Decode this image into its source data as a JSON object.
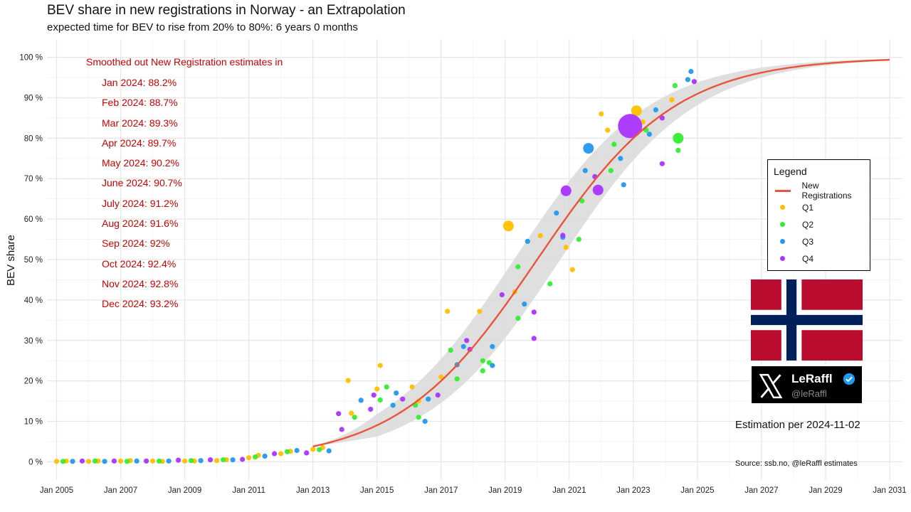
{
  "chart_data": {
    "type": "scatter",
    "title": "BEV share in new registrations in Norway - an Extrapolation",
    "subtitle": "expected time for BEV to rise from 20% to 80%: 6 years 0 months",
    "ylabel": "BEV share",
    "xlabel": "",
    "xlim": [
      2004.7,
      2031.4
    ],
    "ylim": [
      -4.5,
      104.5
    ],
    "x_ticks": [
      2005,
      2007,
      2009,
      2011,
      2013,
      2015,
      2017,
      2019,
      2021,
      2023,
      2025,
      2027,
      2029,
      2031
    ],
    "x_tick_labels": [
      "Jan 2005",
      "Jan 2007",
      "Jan 2009",
      "Jan 2011",
      "Jan 2013",
      "Jan 2015",
      "Jan 2017",
      "Jan 2019",
      "Jan 2021",
      "Jan 2023",
      "Jan 2025",
      "Jan 2027",
      "Jan 2029",
      "Jan 2031"
    ],
    "y_ticks": [
      0,
      10,
      20,
      30,
      40,
      50,
      60,
      70,
      80,
      90,
      100
    ],
    "y_tick_labels": [
      "0 %",
      "10 %",
      "20 %",
      "30 %",
      "40 %",
      "50 %",
      "60 %",
      "70 %",
      "80 %",
      "90 %",
      "100 %"
    ],
    "grid": true,
    "logistic_fit": {
      "midpoint": 2020.0,
      "k": 0.4621,
      "band_width_pct": 8.5,
      "x_start": 2013.0,
      "x_end": 2031.0
    },
    "series": [
      {
        "name": "New Registrations",
        "type": "line",
        "color": "#e8553a"
      },
      {
        "name": "Q1",
        "color": "#ffbf00",
        "points": [
          [
            2005.0,
            0.1
          ],
          [
            2005.3,
            0.2
          ],
          [
            2006.0,
            0.1
          ],
          [
            2006.3,
            0.2
          ],
          [
            2007.0,
            0.2
          ],
          [
            2007.3,
            0.3
          ],
          [
            2008.0,
            0.2
          ],
          [
            2008.3,
            0.1
          ],
          [
            2009.0,
            0.2
          ],
          [
            2009.3,
            0.2
          ],
          [
            2010.0,
            0.3
          ],
          [
            2010.3,
            0.5
          ],
          [
            2011.0,
            1.0
          ],
          [
            2011.3,
            1.6
          ],
          [
            2012.0,
            2.0
          ],
          [
            2012.3,
            2.6
          ],
          [
            2013.0,
            3.1
          ],
          [
            2013.3,
            3.5
          ],
          [
            2014.1,
            20.1
          ],
          [
            2014.2,
            12.0
          ],
          [
            2015.0,
            18.0
          ],
          [
            2015.1,
            23.8
          ],
          [
            2016.1,
            18.5
          ],
          [
            2016.3,
            15.0
          ],
          [
            2017.0,
            21.0
          ],
          [
            2017.2,
            37.2
          ],
          [
            2018.2,
            37.2
          ],
          [
            2019.1,
            58.3
          ],
          [
            2019.3,
            42.0
          ],
          [
            2020.1,
            55.9
          ],
          [
            2020.9,
            53.0
          ],
          [
            2021.1,
            47.5
          ],
          [
            2022.0,
            86.0
          ],
          [
            2022.2,
            82.0
          ],
          [
            2023.1,
            86.8
          ],
          [
            2023.3,
            84.0
          ],
          [
            2024.2,
            89.5
          ]
        ]
      },
      {
        "name": "Q2",
        "color": "#33ee33",
        "points": [
          [
            2005.2,
            0.1
          ],
          [
            2006.2,
            0.2
          ],
          [
            2007.2,
            0.1
          ],
          [
            2008.2,
            0.2
          ],
          [
            2009.2,
            0.3
          ],
          [
            2010.2,
            0.5
          ],
          [
            2011.2,
            1.2
          ],
          [
            2012.2,
            2.5
          ],
          [
            2013.2,
            3.0
          ],
          [
            2014.3,
            11.0
          ],
          [
            2015.1,
            15.3
          ],
          [
            2015.3,
            18.5
          ],
          [
            2016.2,
            14.0
          ],
          [
            2016.3,
            11.0
          ],
          [
            2017.3,
            27.6
          ],
          [
            2017.5,
            20.5
          ],
          [
            2018.3,
            25.0
          ],
          [
            2018.5,
            24.5
          ],
          [
            2018.3,
            22.5
          ],
          [
            2019.4,
            35.5
          ],
          [
            2019.4,
            48.2
          ],
          [
            2020.4,
            44.0
          ],
          [
            2021.3,
            55.0
          ],
          [
            2021.4,
            64.5
          ],
          [
            2022.3,
            72.0
          ],
          [
            2022.4,
            78.5
          ],
          [
            2023.4,
            82.0
          ],
          [
            2024.3,
            93.0
          ],
          [
            2024.4,
            80.0
          ],
          [
            2024.4,
            77.0
          ]
        ]
      },
      {
        "name": "Q3",
        "color": "#2299ee",
        "points": [
          [
            2005.5,
            0.1
          ],
          [
            2006.5,
            0.1
          ],
          [
            2007.5,
            0.2
          ],
          [
            2008.5,
            0.2
          ],
          [
            2009.5,
            0.3
          ],
          [
            2010.5,
            0.5
          ],
          [
            2011.5,
            1.4
          ],
          [
            2012.5,
            2.8
          ],
          [
            2013.5,
            2.7
          ],
          [
            2014.5,
            15.2
          ],
          [
            2015.6,
            17.0
          ],
          [
            2015.5,
            14.0
          ],
          [
            2016.5,
            10.0
          ],
          [
            2016.6,
            15.5
          ],
          [
            2017.5,
            24.0
          ],
          [
            2017.7,
            28.5
          ],
          [
            2018.6,
            28.5
          ],
          [
            2018.6,
            23.8
          ],
          [
            2019.6,
            39.0
          ],
          [
            2019.7,
            54.5
          ],
          [
            2020.6,
            61.5
          ],
          [
            2020.8,
            55.5
          ],
          [
            2021.6,
            77.5
          ],
          [
            2021.5,
            72.0
          ],
          [
            2022.6,
            75.0
          ],
          [
            2022.7,
            68.5
          ],
          [
            2023.5,
            81.0
          ],
          [
            2023.7,
            87.0
          ],
          [
            2024.7,
            94.5
          ],
          [
            2024.8,
            96.5
          ]
        ]
      },
      {
        "name": "Q4",
        "color": "#aa33ff",
        "points": [
          [
            2005.8,
            0.2
          ],
          [
            2006.8,
            0.2
          ],
          [
            2007.8,
            0.2
          ],
          [
            2008.8,
            0.4
          ],
          [
            2009.8,
            0.5
          ],
          [
            2010.8,
            0.6
          ],
          [
            2011.8,
            2.0
          ],
          [
            2012.8,
            2.2
          ],
          [
            2013.8,
            11.9
          ],
          [
            2013.9,
            8.0
          ],
          [
            2014.8,
            13.0
          ],
          [
            2014.9,
            16.5
          ],
          [
            2015.8,
            15.5
          ],
          [
            2016.9,
            16.5
          ],
          [
            2017.9,
            27.8
          ],
          [
            2017.8,
            30.0
          ],
          [
            2018.9,
            41.3
          ],
          [
            2019.9,
            37.0
          ],
          [
            2019.9,
            30.5
          ],
          [
            2020.9,
            67.0
          ],
          [
            2020.8,
            56.0
          ],
          [
            2021.9,
            67.2
          ],
          [
            2021.8,
            70.5
          ],
          [
            2022.9,
            83.0
          ],
          [
            2023.9,
            73.7
          ],
          [
            2023.9,
            85.0
          ],
          [
            2024.9,
            94.0
          ]
        ]
      }
    ],
    "bubble_sizes": [
      {
        "series": "Q1",
        "x": 2019.1,
        "y": 58.3,
        "size": "l"
      },
      {
        "series": "Q1",
        "x": 2023.1,
        "y": 86.8,
        "size": "l"
      },
      {
        "series": "Q4",
        "x": 2022.9,
        "y": 83.0,
        "size": "xl"
      },
      {
        "series": "Q4",
        "x": 2020.9,
        "y": 67.0,
        "size": "l"
      },
      {
        "series": "Q4",
        "x": 2021.9,
        "y": 67.2,
        "size": "l"
      },
      {
        "series": "Q3",
        "x": 2021.6,
        "y": 77.5,
        "size": "l"
      },
      {
        "series": "Q2",
        "x": 2024.4,
        "y": 80.0,
        "size": "l"
      }
    ]
  },
  "annotation": {
    "heading": "Smoothed out New Registration estimates in",
    "items": [
      "Jan 2024: 88.2%",
      "Feb 2024: 88.7%",
      "Mar 2024: 89.3%",
      "Apr 2024: 89.7%",
      "May 2024: 90.2%",
      "June 2024: 90.7%",
      "July 2024: 91.2%",
      "Aug 2024: 91.6%",
      "Sep 2024: 92%",
      "Oct 2024: 92.4%",
      "Nov 2024: 92.8%",
      "Dec 2024: 93.2%"
    ]
  },
  "legend": {
    "title": "Legend",
    "items": [
      {
        "label": "New Registrations",
        "type": "line",
        "color": "#e8553a"
      },
      {
        "label": "Q1",
        "type": "dot",
        "color": "#ffbf00"
      },
      {
        "label": "Q2",
        "type": "dot",
        "color": "#33ee33"
      },
      {
        "label": "Q3",
        "type": "dot",
        "color": "#2299ee"
      },
      {
        "label": "Q4",
        "type": "dot",
        "color": "#aa33ff"
      }
    ]
  },
  "flag": {
    "icon": "norway-flag-icon",
    "red": "#ba0c2f",
    "white": "#ffffff",
    "blue": "#00205b"
  },
  "social": {
    "name": "LeRaffl",
    "handle": "@leRaffl",
    "icon": "x-logo-icon"
  },
  "estimation_text": "Estimation per 2024-11-02",
  "source_text": "Source: ssb.no, @leRaffl estimates"
}
